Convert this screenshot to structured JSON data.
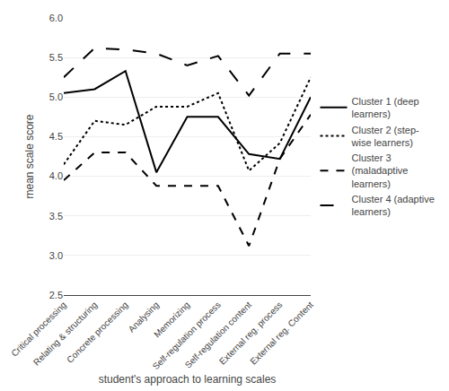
{
  "chart_data": {
    "type": "line",
    "categories": [
      "Critical processing",
      "Relating & structuring",
      "Concrete processing",
      "Analysing",
      "Memorizing",
      "Self-regulation process",
      "Self-regulation content",
      "External reg. process",
      "External reg. Content"
    ],
    "series": [
      {
        "name": "Cluster 1 (deep\nlearners)",
        "color": "#000000",
        "line_style": "solid",
        "values": [
          5.05,
          5.1,
          5.33,
          4.05,
          4.75,
          4.75,
          4.28,
          4.22,
          5.0
        ]
      },
      {
        "name": "Cluster 2 (step-\nwise learners)",
        "color": "#000000",
        "line_style": "dot",
        "values": [
          4.15,
          4.7,
          4.65,
          4.88,
          4.88,
          5.05,
          4.07,
          4.42,
          5.25
        ]
      },
      {
        "name": "Cluster 3\n(maladaptive\nlearners)",
        "color": "#000000",
        "line_style": "dash",
        "values": [
          3.95,
          4.3,
          4.3,
          3.88,
          3.88,
          3.88,
          3.12,
          4.22,
          4.78
        ]
      },
      {
        "name": "Cluster 4 (adaptive\nlearners)",
        "color": "#000000",
        "line_style": "longdash",
        "values": [
          5.25,
          5.62,
          5.6,
          5.55,
          5.4,
          5.52,
          5.02,
          5.55,
          5.55
        ]
      }
    ],
    "xlabel": "student's approach to learning scales",
    "ylabel": "mean scale score",
    "ylim": [
      2.5,
      6.0
    ],
    "yticks": [
      2.5,
      {
        "value": 3.0,
        "label": "3.0"
      },
      3.5,
      {
        "value": 4.0,
        "label": "4.0"
      },
      4.5,
      {
        "value": 5.0,
        "label": "5.0"
      },
      5.5,
      {
        "value": 6.0,
        "label": "6.0"
      }
    ],
    "grid": true,
    "legend": "right"
  }
}
